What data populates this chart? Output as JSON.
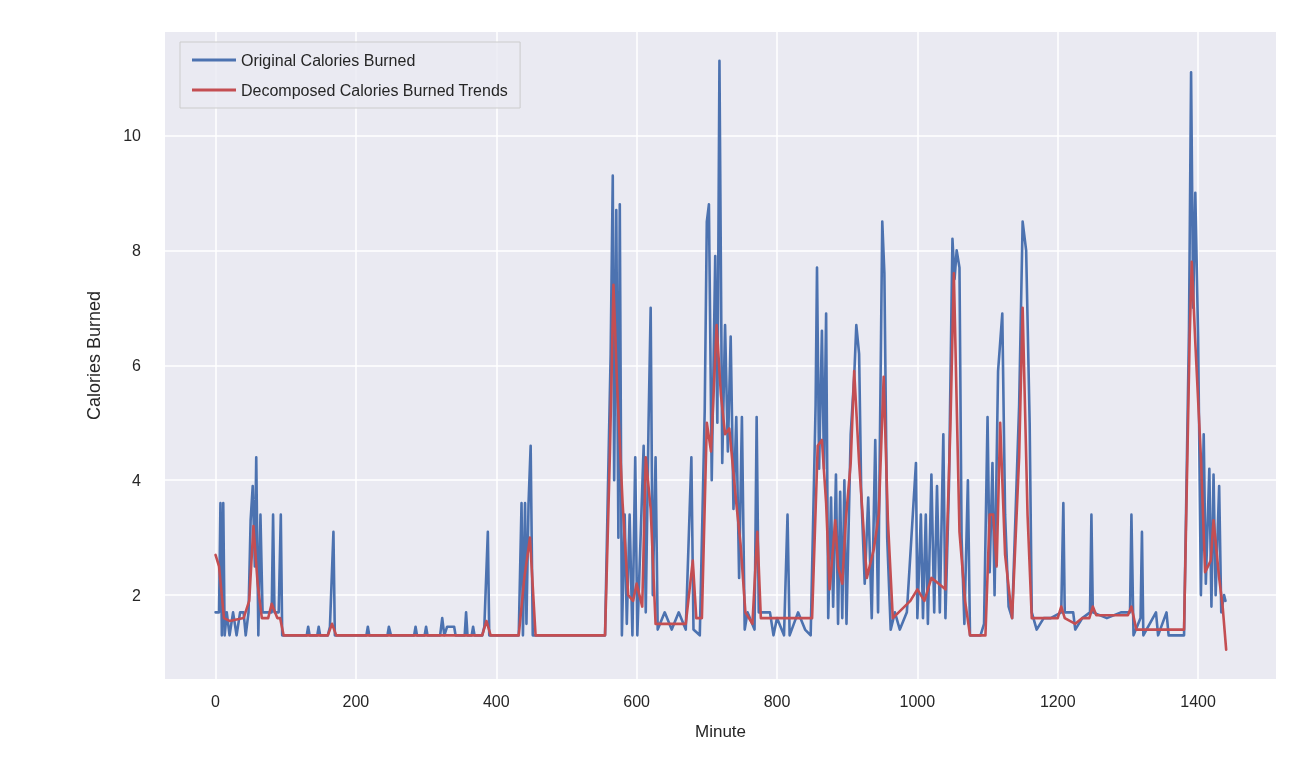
{
  "chart_data": {
    "type": "line",
    "xlabel": "Minute",
    "ylabel": "Calories Burned",
    "xlim": [
      -72,
      1511
    ],
    "xticks": [
      0,
      200,
      400,
      600,
      800,
      1000,
      1200,
      1400
    ],
    "ylim": [
      0.54,
      11.8
    ],
    "yticks": [
      2,
      4,
      6,
      8,
      10
    ],
    "grid": true,
    "legend": "top left",
    "marker": "none",
    "line_style": "solid",
    "series": [
      {
        "name": "Original Calories Burned",
        "color": "#4c72b0",
        "x": [
          0,
          5,
          7,
          9,
          11,
          13,
          16,
          20,
          25,
          30,
          35,
          40,
          43,
          47,
          50,
          53,
          56,
          58,
          61,
          64,
          67,
          80,
          82,
          84,
          90,
          93,
          95,
          100,
          130,
          132,
          134,
          145,
          147,
          149,
          160,
          163,
          168,
          170,
          215,
          217,
          219,
          245,
          247,
          250,
          283,
          285,
          287,
          298,
          300,
          302,
          320,
          323,
          326,
          330,
          340,
          342,
          355,
          357,
          359,
          365,
          367,
          369,
          380,
          383,
          388,
          390,
          432,
          436,
          438,
          441,
          443,
          446,
          449,
          452,
          555,
          560,
          563,
          566,
          568,
          571,
          574,
          576,
          579,
          583,
          586,
          590,
          594,
          598,
          601,
          610,
          613,
          617,
          620,
          623,
          627,
          630,
          640,
          650,
          660,
          670,
          678,
          681,
          690,
          697,
          700,
          703,
          707,
          712,
          715,
          718,
          722,
          726,
          730,
          734,
          738,
          742,
          746,
          750,
          754,
          758,
          768,
          771,
          774,
          790,
          795,
          800,
          810,
          815,
          818,
          830,
          840,
          848,
          855,
          857,
          860,
          864,
          867,
          870,
          873,
          877,
          880,
          884,
          887,
          890,
          893,
          896,
          899,
          905,
          910,
          913,
          917,
          920,
          925,
          930,
          935,
          940,
          944,
          950,
          953,
          957,
          962,
          968,
          975,
          985,
          998,
          1000,
          1005,
          1008,
          1012,
          1015,
          1020,
          1024,
          1028,
          1032,
          1037,
          1040,
          1045,
          1050,
          1053,
          1056,
          1060,
          1063,
          1067,
          1072,
          1075,
          1090,
          1095,
          1100,
          1103,
          1107,
          1110,
          1115,
          1118,
          1121,
          1125,
          1130,
          1135,
          1145,
          1150,
          1155,
          1160,
          1163,
          1170,
          1180,
          1190,
          1205,
          1208,
          1210,
          1222,
          1225,
          1235,
          1246,
          1248,
          1250,
          1270,
          1290,
          1303,
          1305,
          1308,
          1318,
          1320,
          1322,
          1340,
          1343,
          1355,
          1358,
          1380,
          1387,
          1390,
          1393,
          1396,
          1400,
          1404,
          1408,
          1411,
          1416,
          1419,
          1422,
          1425,
          1430,
          1433,
          1437,
          1439
        ],
        "values": [
          1.7,
          1.7,
          3.6,
          1.3,
          3.6,
          1.3,
          1.7,
          1.3,
          1.7,
          1.3,
          1.7,
          1.7,
          1.3,
          1.7,
          3.3,
          3.9,
          2.5,
          4.4,
          1.3,
          3.4,
          1.7,
          1.7,
          3.4,
          1.7,
          1.7,
          3.4,
          1.3,
          1.3,
          1.3,
          1.45,
          1.3,
          1.3,
          1.45,
          1.3,
          1.3,
          1.45,
          3.1,
          1.3,
          1.3,
          1.45,
          1.3,
          1.3,
          1.45,
          1.3,
          1.3,
          1.45,
          1.3,
          1.3,
          1.45,
          1.3,
          1.3,
          1.6,
          1.3,
          1.45,
          1.45,
          1.3,
          1.3,
          1.7,
          1.3,
          1.3,
          1.45,
          1.3,
          1.3,
          1.45,
          3.1,
          1.3,
          1.3,
          3.6,
          1.3,
          3.6,
          1.5,
          3.6,
          4.6,
          1.3,
          1.3,
          4.4,
          6.2,
          9.3,
          4,
          8.7,
          3,
          8.8,
          1.3,
          3.4,
          1.5,
          3.4,
          1.3,
          4.4,
          1.3,
          4.6,
          1.7,
          5,
          7,
          2,
          4.4,
          1.4,
          1.7,
          1.4,
          1.7,
          1.4,
          4.4,
          1.4,
          1.3,
          5.2,
          8.5,
          8.8,
          4,
          7.9,
          5,
          11.3,
          4.3,
          6.7,
          4.5,
          6.5,
          3.5,
          5.1,
          2.3,
          5.1,
          1.4,
          1.7,
          1.4,
          5.1,
          1.7,
          1.7,
          1.3,
          1.6,
          1.3,
          3.4,
          1.3,
          1.7,
          1.4,
          1.3,
          5.3,
          7.7,
          4.2,
          6.6,
          4.2,
          6.9,
          1.6,
          3.7,
          1.8,
          4.1,
          1.5,
          3.8,
          1.6,
          4,
          1.5,
          4.8,
          5.8,
          6.7,
          6.2,
          3.8,
          2.2,
          3.7,
          1.6,
          4.7,
          1.7,
          8.5,
          7.6,
          3,
          1.4,
          1.7,
          1.4,
          1.7,
          4.3,
          1.6,
          3.4,
          1.6,
          3.4,
          1.5,
          4.1,
          1.7,
          3.9,
          1.7,
          4.8,
          1.6,
          3.9,
          8.2,
          7.5,
          8,
          7.7,
          3,
          1.5,
          4,
          1.3,
          1.3,
          1.5,
          5.1,
          2.4,
          4.3,
          2,
          5.9,
          6.4,
          6.9,
          3.4,
          1.8,
          1.6,
          5.3,
          8.5,
          8,
          5,
          1.7,
          1.4,
          1.6,
          1.6,
          1.7,
          3.6,
          1.7,
          1.7,
          1.4,
          1.6,
          1.7,
          3.4,
          1.7,
          1.6,
          1.7,
          1.7,
          3.4,
          1.3,
          1.6,
          3.1,
          1.3,
          1.7,
          1.3,
          1.7,
          1.3,
          1.3,
          6.6,
          11.1,
          7,
          9,
          6.5,
          2,
          4.8,
          2.2,
          4.2,
          1.8,
          4.1,
          2,
          3.9,
          1.7,
          2,
          1.9
        ]
      },
      {
        "name": "Decomposed Calories Burned Trends",
        "color": "#c44e52",
        "x": [
          0,
          5,
          12,
          20,
          40,
          48,
          54,
          60,
          66,
          75,
          80,
          88,
          92,
          97,
          160,
          166,
          172,
          380,
          386,
          392,
          432,
          440,
          448,
          456,
          555,
          562,
          567,
          572,
          580,
          588,
          595,
          600,
          608,
          613,
          620,
          627,
          670,
          680,
          685,
          693,
          700,
          706,
          714,
          720,
          726,
          732,
          742,
          748,
          755,
          765,
          772,
          777,
          850,
          858,
          864,
          870,
          875,
          883,
          887,
          893,
          898,
          905,
          910,
          917,
          928,
          938,
          945,
          952,
          958,
          965,
          990,
          1000,
          1010,
          1020,
          1030,
          1040,
          1047,
          1052,
          1060,
          1068,
          1075,
          1097,
          1103,
          1108,
          1113,
          1118,
          1125,
          1135,
          1145,
          1150,
          1157,
          1163,
          1200,
          1205,
          1210,
          1225,
          1235,
          1245,
          1250,
          1255,
          1300,
          1305,
          1312,
          1380,
          1388,
          1391,
          1396,
          1404,
          1410,
          1418,
          1422,
          1430,
          1435,
          1440
        ],
        "values": [
          2.7,
          2.5,
          1.6,
          1.55,
          1.6,
          1.9,
          3.2,
          2.2,
          1.6,
          1.6,
          1.85,
          1.6,
          1.6,
          1.3,
          1.3,
          1.5,
          1.3,
          1.3,
          1.55,
          1.3,
          1.3,
          2.3,
          3,
          1.3,
          1.3,
          4.5,
          7.4,
          5.7,
          3.6,
          2,
          1.9,
          2.2,
          1.8,
          4.4,
          3.5,
          1.5,
          1.5,
          2.6,
          1.6,
          1.6,
          5,
          4.5,
          6.7,
          5.5,
          4.8,
          4.9,
          3.6,
          2.9,
          1.7,
          1.5,
          3.1,
          1.6,
          1.6,
          4.6,
          4.7,
          3.6,
          2.1,
          3.3,
          2.5,
          2.2,
          3.3,
          4.3,
          5.9,
          4.3,
          2.3,
          2.8,
          3.4,
          5.8,
          3.3,
          1.6,
          1.9,
          2.1,
          1.9,
          2.3,
          2.2,
          2.1,
          4.9,
          7.6,
          3.1,
          1.9,
          1.3,
          1.3,
          3.4,
          3.4,
          2.5,
          5,
          2.7,
          1.6,
          4.4,
          7,
          3.4,
          1.6,
          1.6,
          1.8,
          1.6,
          1.5,
          1.6,
          1.6,
          1.8,
          1.65,
          1.65,
          1.8,
          1.4,
          1.4,
          6.5,
          7.8,
          6.4,
          4.4,
          2.4,
          2.6,
          3.3,
          2.3,
          1.8,
          1.05
        ]
      }
    ]
  }
}
